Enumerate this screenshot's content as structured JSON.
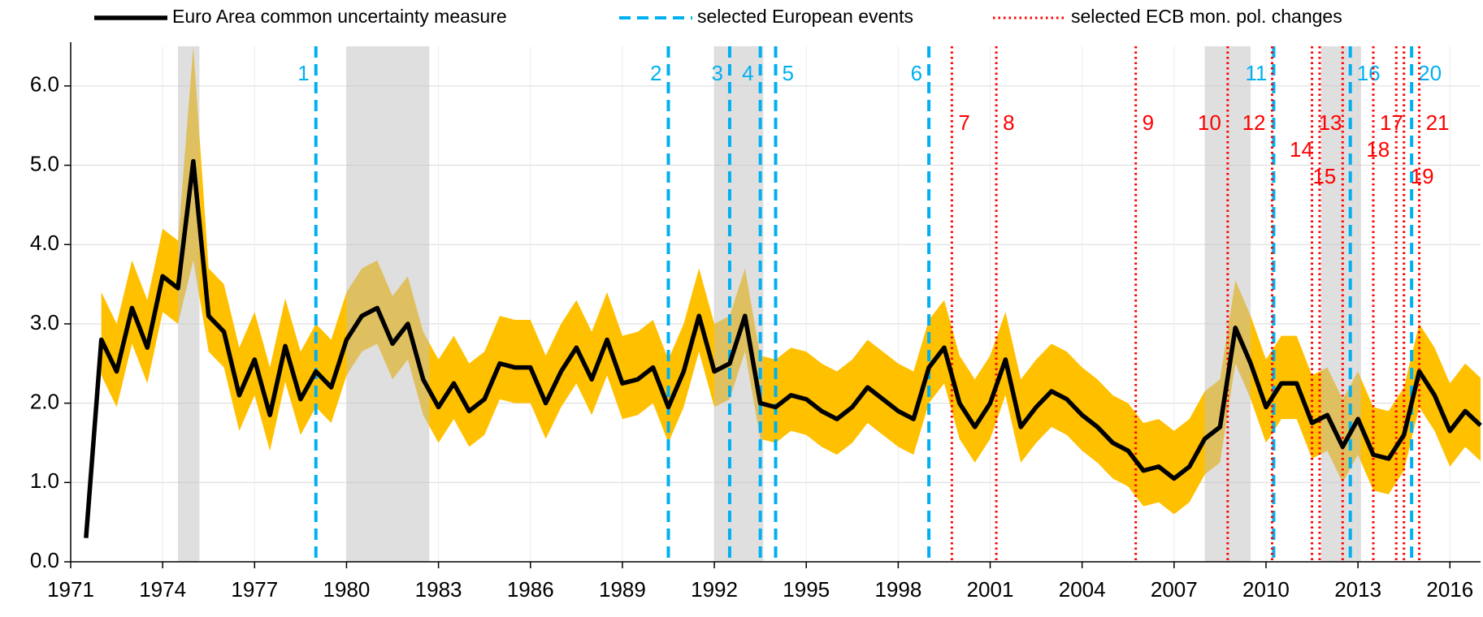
{
  "chart_data": {
    "type": "line",
    "x": [
      1971.5,
      1972.0,
      1972.5,
      1973.0,
      1973.5,
      1974.0,
      1974.5,
      1975.0,
      1975.5,
      1976.0,
      1976.5,
      1977.0,
      1977.5,
      1978.0,
      1978.5,
      1979.0,
      1979.5,
      1980.0,
      1980.5,
      1981.0,
      1981.5,
      1982.0,
      1982.5,
      1983.0,
      1983.5,
      1984.0,
      1984.5,
      1985.0,
      1985.5,
      1986.0,
      1986.5,
      1987.0,
      1987.5,
      1988.0,
      1988.5,
      1989.0,
      1989.5,
      1990.0,
      1990.5,
      1991.0,
      1991.5,
      1992.0,
      1992.5,
      1993.0,
      1993.5,
      1994.0,
      1994.5,
      1995.0,
      1995.5,
      1996.0,
      1996.5,
      1997.0,
      1997.5,
      1998.0,
      1998.5,
      1999.0,
      1999.5,
      2000.0,
      2000.5,
      2001.0,
      2001.5,
      2002.0,
      2002.5,
      2003.0,
      2003.5,
      2004.0,
      2004.5,
      2005.0,
      2005.5,
      2006.0,
      2006.5,
      2007.0,
      2007.5,
      2008.0,
      2008.5,
      2009.0,
      2009.5,
      2010.0,
      2010.5,
      2011.0,
      2011.5,
      2012.0,
      2012.5,
      2013.0,
      2013.5,
      2014.0,
      2014.5,
      2015.0,
      2015.5,
      2016.0,
      2016.5,
      2017.0
    ],
    "series": [
      {
        "name": "Euro Area common uncertainty measure",
        "color": "#000000",
        "values": [
          0.3,
          2.8,
          2.4,
          3.2,
          2.7,
          3.6,
          3.45,
          5.05,
          3.1,
          2.9,
          2.1,
          2.55,
          1.85,
          2.72,
          2.05,
          2.4,
          2.2,
          2.8,
          3.1,
          3.2,
          2.75,
          3.0,
          2.3,
          1.95,
          2.25,
          1.9,
          2.05,
          2.5,
          2.45,
          2.45,
          2.0,
          2.4,
          2.7,
          2.3,
          2.8,
          2.25,
          2.3,
          2.45,
          1.95,
          2.4,
          3.1,
          2.4,
          2.5,
          3.1,
          2.0,
          1.95,
          2.1,
          2.05,
          1.9,
          1.8,
          1.95,
          2.2,
          2.05,
          1.9,
          1.8,
          2.45,
          2.7,
          2.0,
          1.7,
          2.0,
          2.55,
          1.7,
          1.95,
          2.15,
          2.05,
          1.85,
          1.7,
          1.5,
          1.4,
          1.15,
          1.2,
          1.05,
          1.2,
          1.55,
          1.7,
          2.95,
          2.5,
          1.95,
          2.25,
          2.25,
          1.75,
          1.85,
          1.45,
          1.8,
          1.35,
          1.3,
          1.6,
          2.4,
          2.1,
          1.65,
          1.9,
          1.72
        ]
      }
    ],
    "band": {
      "color": "#ffc000",
      "upper": [
        null,
        3.4,
        3.0,
        3.8,
        3.3,
        4.2,
        4.05,
        6.5,
        3.7,
        3.5,
        2.7,
        3.15,
        2.45,
        3.32,
        2.65,
        3.0,
        2.8,
        3.4,
        3.7,
        3.8,
        3.35,
        3.6,
        2.9,
        2.55,
        2.85,
        2.5,
        2.65,
        3.1,
        3.05,
        3.05,
        2.6,
        3.0,
        3.3,
        2.9,
        3.4,
        2.85,
        2.9,
        3.05,
        2.55,
        3.0,
        3.7,
        3.0,
        3.1,
        3.7,
        2.6,
        2.55,
        2.7,
        2.65,
        2.5,
        2.4,
        2.55,
        2.8,
        2.65,
        2.5,
        2.4,
        3.05,
        3.3,
        2.6,
        2.3,
        2.6,
        3.15,
        2.3,
        2.55,
        2.75,
        2.65,
        2.45,
        2.3,
        2.1,
        2.0,
        1.75,
        1.8,
        1.65,
        1.8,
        2.15,
        2.3,
        3.55,
        3.1,
        2.55,
        2.85,
        2.85,
        2.35,
        2.45,
        2.05,
        2.4,
        1.95,
        1.9,
        2.2,
        3.0,
        2.7,
        2.25,
        2.5,
        2.32
      ],
      "lower": [
        null,
        2.35,
        1.95,
        2.75,
        2.25,
        3.15,
        3.0,
        3.8,
        2.65,
        2.45,
        1.65,
        2.1,
        1.4,
        2.27,
        1.6,
        1.95,
        1.75,
        2.35,
        2.65,
        2.75,
        2.3,
        2.55,
        1.85,
        1.5,
        1.8,
        1.45,
        1.6,
        2.05,
        2.0,
        2.0,
        1.55,
        1.95,
        2.25,
        1.85,
        2.35,
        1.8,
        1.85,
        2.0,
        1.5,
        1.95,
        2.65,
        1.95,
        2.05,
        2.65,
        1.55,
        1.5,
        1.65,
        1.6,
        1.45,
        1.35,
        1.5,
        1.75,
        1.6,
        1.45,
        1.35,
        2.0,
        2.25,
        1.55,
        1.25,
        1.55,
        2.1,
        1.25,
        1.5,
        1.7,
        1.6,
        1.4,
        1.25,
        1.05,
        0.95,
        0.7,
        0.75,
        0.6,
        0.75,
        1.1,
        1.25,
        2.5,
        2.05,
        1.5,
        1.8,
        1.8,
        1.3,
        1.4,
        1.0,
        1.35,
        0.9,
        0.85,
        1.15,
        1.95,
        1.65,
        1.2,
        1.45,
        1.27
      ]
    },
    "shaded_periods": [
      [
        1974.5,
        1975.2
      ],
      [
        1980.0,
        1982.7
      ],
      [
        1992.0,
        1993.6
      ],
      [
        2008.0,
        2009.5
      ],
      [
        2011.8,
        2013.1
      ]
    ],
    "shade_color": "#bfbfbf",
    "events": {
      "name": "selected European events",
      "color": "#00b0f0",
      "items": [
        {
          "label": "1",
          "x": 1979.0
        },
        {
          "label": "2",
          "x": 1990.5
        },
        {
          "label": "3",
          "x": 1992.5
        },
        {
          "label": "4",
          "x": 1993.5
        },
        {
          "label": "5",
          "x": 1994.0
        },
        {
          "label": "6",
          "x": 1999.0
        },
        {
          "label": "11",
          "x": 2010.25
        },
        {
          "label": "16",
          "x": 2012.75
        },
        {
          "label": "20",
          "x": 2014.75
        }
      ]
    },
    "policy_changes": {
      "name": "selected ECB mon. pol. changes",
      "color": "#ff0000",
      "items": [
        {
          "label": "7",
          "x": 1999.75
        },
        {
          "label": "8",
          "x": 2001.2
        },
        {
          "label": "9",
          "x": 2005.75
        },
        {
          "label": "10",
          "x": 2008.75
        },
        {
          "label": "12",
          "x": 2010.2
        },
        {
          "label": "13",
          "x": 2011.5
        },
        {
          "label": "14",
          "x": 2011.75
        },
        {
          "label": "15",
          "x": 2012.5
        },
        {
          "label": "17",
          "x": 2013.5
        },
        {
          "label": "18",
          "x": 2014.25
        },
        {
          "label": "19",
          "x": 2014.5
        },
        {
          "label": "21",
          "x": 2015.0
        }
      ]
    },
    "xlim": [
      1971,
      2017
    ],
    "xticks": [
      1971,
      1974,
      1977,
      1980,
      1983,
      1986,
      1989,
      1992,
      1995,
      1998,
      2001,
      2004,
      2007,
      2010,
      2013,
      2016
    ],
    "ylim": [
      0,
      6.5
    ],
    "yticks": [
      {
        "value": 0,
        "label": "0.0"
      },
      {
        "value": 1,
        "label": "1.0"
      },
      {
        "value": 2,
        "label": "2.0"
      },
      {
        "value": 3,
        "label": "3.0"
      },
      {
        "value": 4,
        "label": "4.0"
      },
      {
        "value": 5,
        "label": "5.0"
      },
      {
        "value": 6,
        "label": "6.0"
      }
    ],
    "grid": true
  }
}
